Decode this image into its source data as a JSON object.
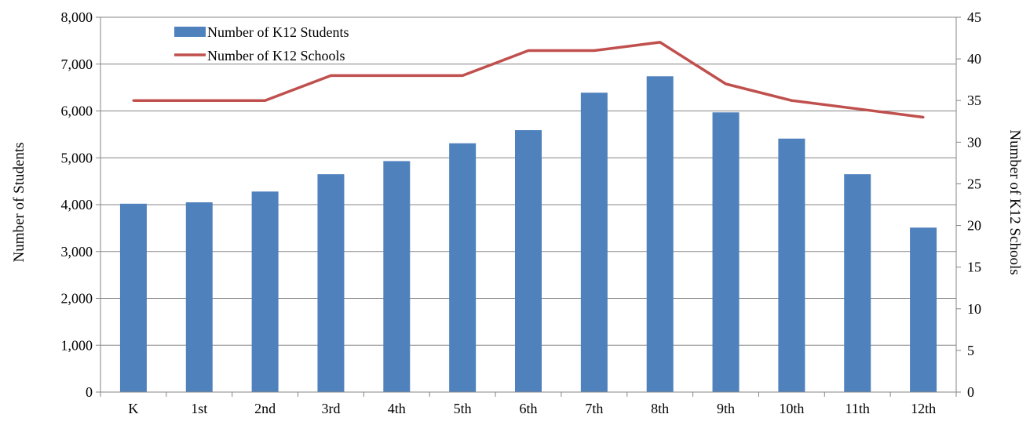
{
  "chart_data": {
    "type": "bar",
    "categories": [
      "K",
      "1st",
      "2nd",
      "3rd",
      "4th",
      "5th",
      "6th",
      "7th",
      "8th",
      "9th",
      "10th",
      "11th",
      "12th"
    ],
    "series": [
      {
        "name": "Number of K12 Students",
        "type": "bar",
        "axis": "left",
        "color": "#4F81BD",
        "values": [
          4020,
          4050,
          4280,
          4650,
          4930,
          5310,
          5590,
          6390,
          6740,
          5970,
          5410,
          4650,
          3510
        ]
      },
      {
        "name": "Number of K12 Schools",
        "type": "line",
        "axis": "right",
        "color": "#C0504D",
        "values": [
          35,
          35,
          35,
          38,
          38,
          38,
          41,
          41,
          42,
          37,
          35,
          34,
          33
        ]
      }
    ],
    "ylabel": "Number of Students",
    "y2label": "Number of K12 Schools",
    "ylim": [
      0,
      8000
    ],
    "y2lim": [
      0,
      45
    ],
    "yticks": [
      "0",
      "1,000",
      "2,000",
      "3,000",
      "4,000",
      "5,000",
      "6,000",
      "7,000",
      "8,000"
    ],
    "y2ticks": [
      "0",
      "5",
      "10",
      "15",
      "20",
      "25",
      "30",
      "35",
      "40",
      "45"
    ],
    "grid": true,
    "legend_position": "top-left"
  }
}
